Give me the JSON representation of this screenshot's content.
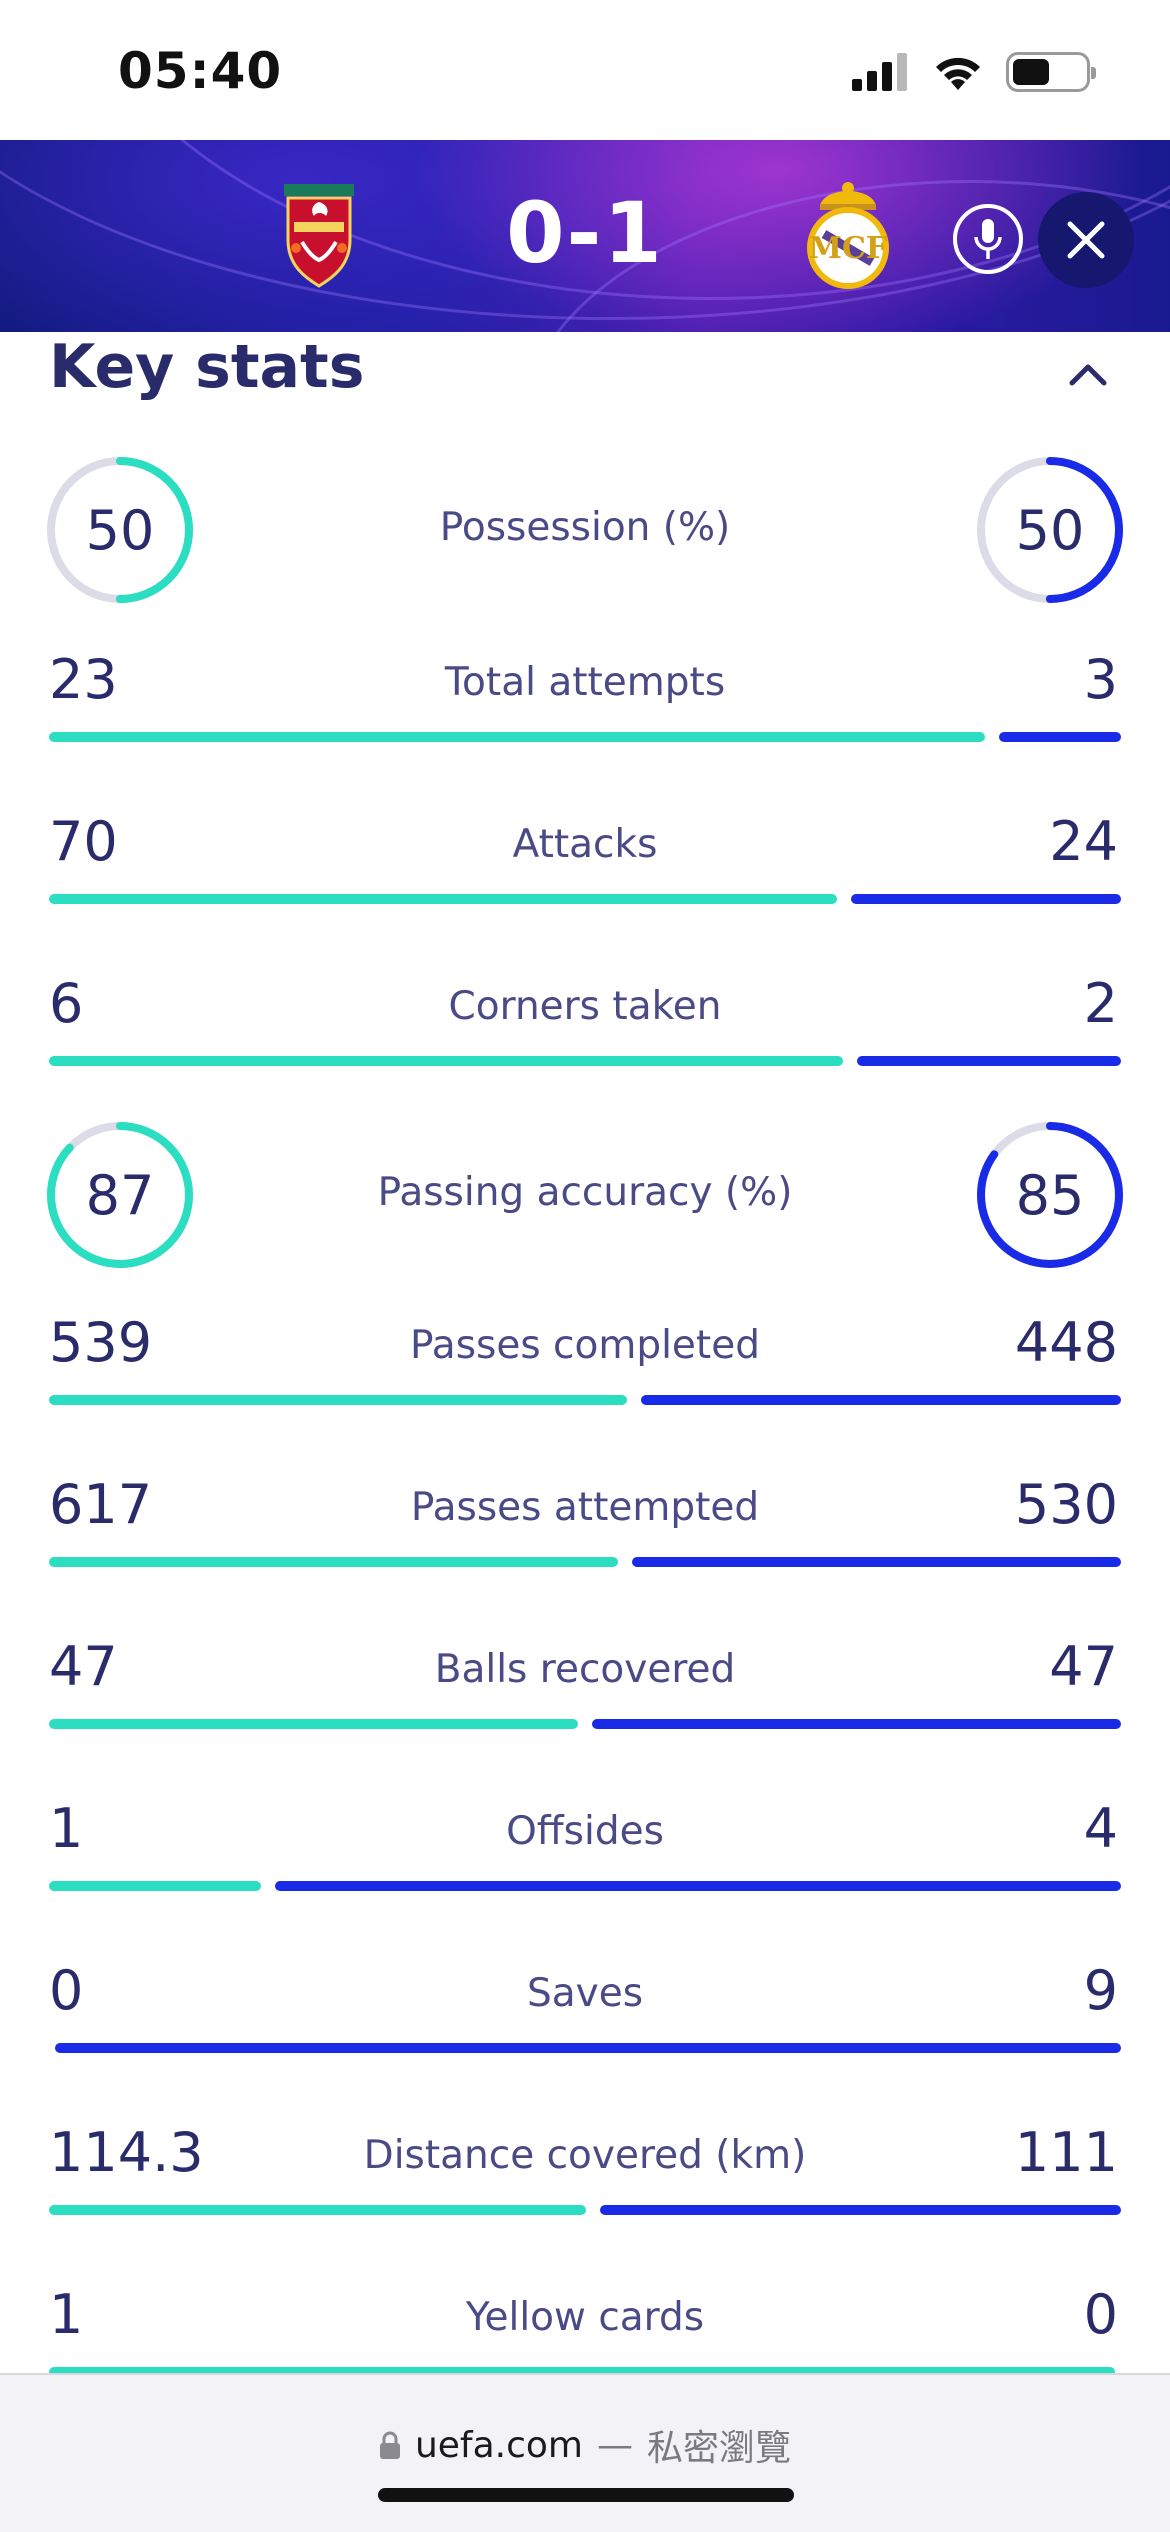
{
  "status_bar": {
    "time": "05:40"
  },
  "match": {
    "score": "0-1",
    "home_crest": "liverpool-crest-icon",
    "away_crest": "real-madrid-crest-icon"
  },
  "section": {
    "title": "Key stats"
  },
  "colors": {
    "home": "#2bdec1",
    "away": "#1a2be8",
    "text": "#2a2b6b"
  },
  "ring_stats": [
    {
      "label": "Possession (%)",
      "home": "50",
      "away": "50",
      "home_pct": 50,
      "away_pct": 50
    },
    {
      "label": "Passing accuracy (%)",
      "home": "87",
      "away": "85",
      "home_pct": 87,
      "away_pct": 85
    }
  ],
  "bar_stats": [
    {
      "label": "Total attempts",
      "home": "23",
      "away": "3"
    },
    {
      "label": "Attacks",
      "home": "70",
      "away": "24"
    },
    {
      "label": "Corners taken",
      "home": "6",
      "away": "2"
    },
    {
      "label": "Passes completed",
      "home": "539",
      "away": "448"
    },
    {
      "label": "Passes attempted",
      "home": "617",
      "away": "530"
    },
    {
      "label": "Balls recovered",
      "home": "47",
      "away": "47"
    },
    {
      "label": "Offsides",
      "home": "1",
      "away": "4"
    },
    {
      "label": "Saves",
      "home": "0",
      "away": "9"
    },
    {
      "label": "Distance covered (km)",
      "home": "114.3",
      "away": "111"
    },
    {
      "label": "Yellow cards",
      "home": "1",
      "away": "0"
    }
  ],
  "browser": {
    "domain": "uefa.com",
    "separator": "—",
    "mode": "私密瀏覽"
  }
}
